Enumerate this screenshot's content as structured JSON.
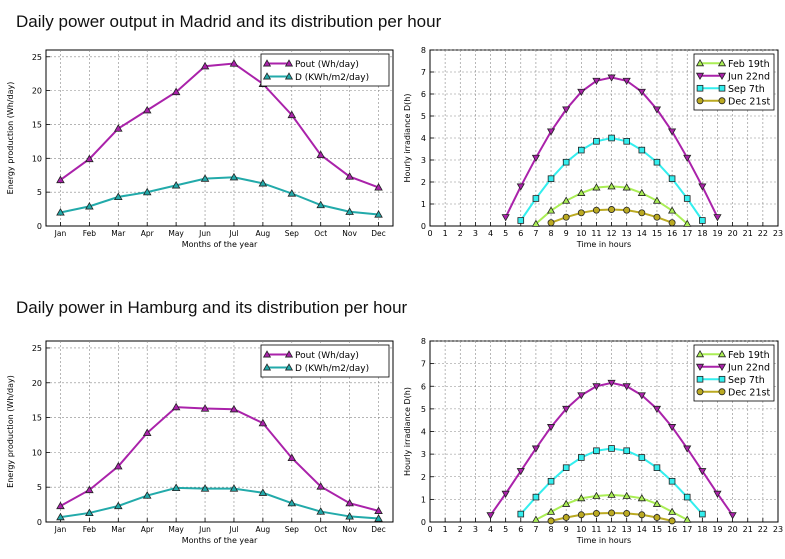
{
  "page": {
    "titles": [
      "Daily power output in Madrid and its distribution per hour",
      "Daily power in Hamburg and its distribution per hour"
    ]
  },
  "colors": {
    "pout": "#aa22aa",
    "d": "#22aaaa",
    "feb": "#aaee55",
    "jun": "#aa22aa",
    "sep": "#33eeee",
    "dec": "#bbaa22",
    "grid": "#888888"
  },
  "chart_data": [
    {
      "id": "madrid-monthly",
      "type": "line",
      "title": "",
      "xlabel": "Months of the year",
      "ylabel": "Energy production (Wh/day)",
      "categories": [
        "Jan",
        "Feb",
        "Mar",
        "Apr",
        "May",
        "Jun",
        "Jul",
        "Aug",
        "Sep",
        "Oct",
        "Nov",
        "Dec"
      ],
      "ylim": [
        0,
        26
      ],
      "yticks": [
        0,
        5,
        10,
        15,
        20,
        25
      ],
      "legend_position": "top-right",
      "series": [
        {
          "name": "Pout (Wh/day)",
          "marker": "triangle-up",
          "color_key": "pout",
          "values": [
            6.8,
            9.9,
            14.4,
            17.1,
            19.8,
            23.6,
            24.0,
            21.0,
            16.4,
            10.5,
            7.3,
            5.7
          ]
        },
        {
          "name": "D  (KWh/m2/day)",
          "marker": "triangle-up",
          "color_key": "d",
          "values": [
            2.0,
            2.9,
            4.3,
            5.0,
            6.0,
            7.0,
            7.2,
            6.3,
            4.8,
            3.1,
            2.1,
            1.7
          ]
        }
      ]
    },
    {
      "id": "madrid-hourly",
      "type": "line",
      "title": "",
      "xlabel": "Time in hours",
      "ylabel": "Hourly irradiance D(h)",
      "xlim": [
        0,
        23
      ],
      "xticks": [
        0,
        1,
        2,
        3,
        4,
        5,
        6,
        7,
        8,
        9,
        10,
        11,
        12,
        13,
        14,
        15,
        16,
        17,
        18,
        19,
        20,
        21,
        22,
        23
      ],
      "ylim": [
        0,
        8
      ],
      "yticks": [
        0,
        1,
        2,
        3,
        4,
        5,
        6,
        7,
        8
      ],
      "legend_position": "top-right",
      "series": [
        {
          "name": "Feb 19th",
          "marker": "triangle-up",
          "color_key": "feb",
          "x": [
            7,
            8,
            9,
            10,
            11,
            12,
            13,
            14,
            15,
            16,
            17
          ],
          "y": [
            0.1,
            0.7,
            1.15,
            1.5,
            1.75,
            1.8,
            1.75,
            1.5,
            1.15,
            0.7,
            0.1
          ]
        },
        {
          "name": "Jun 22nd",
          "marker": "triangle-down",
          "color_key": "jun",
          "x": [
            5,
            6,
            7,
            8,
            9,
            10,
            11,
            12,
            13,
            14,
            15,
            16,
            17,
            18,
            19
          ],
          "y": [
            0.4,
            1.8,
            3.1,
            4.3,
            5.3,
            6.1,
            6.6,
            6.75,
            6.6,
            6.1,
            5.3,
            4.3,
            3.1,
            1.8,
            0.4
          ]
        },
        {
          "name": "Sep 7th",
          "marker": "square",
          "color_key": "sep",
          "x": [
            6,
            7,
            8,
            9,
            10,
            11,
            12,
            13,
            14,
            15,
            16,
            17,
            18
          ],
          "y": [
            0.25,
            1.25,
            2.15,
            2.9,
            3.45,
            3.85,
            4.0,
            3.85,
            3.45,
            2.9,
            2.15,
            1.25,
            0.25
          ]
        },
        {
          "name": "Dec 21st",
          "marker": "circle",
          "color_key": "dec",
          "x": [
            8,
            9,
            10,
            11,
            12,
            13,
            14,
            15,
            16
          ],
          "y": [
            0.15,
            0.4,
            0.6,
            0.72,
            0.75,
            0.72,
            0.6,
            0.4,
            0.15
          ]
        }
      ]
    },
    {
      "id": "hamburg-monthly",
      "type": "line",
      "title": "",
      "xlabel": "Months of the year",
      "ylabel": "Energy production (Wh/day)",
      "categories": [
        "Jan",
        "Feb",
        "Mar",
        "Apr",
        "May",
        "Jun",
        "Jul",
        "Aug",
        "Sep",
        "Oct",
        "Nov",
        "Dec"
      ],
      "ylim": [
        0,
        26
      ],
      "yticks": [
        0,
        5,
        10,
        15,
        20,
        25
      ],
      "legend_position": "top-right",
      "series": [
        {
          "name": "Pout (Wh/day)",
          "marker": "triangle-up",
          "color_key": "pout",
          "values": [
            2.3,
            4.6,
            8.0,
            12.8,
            16.5,
            16.3,
            16.2,
            14.2,
            9.2,
            5.1,
            2.7,
            1.6
          ]
        },
        {
          "name": "D  (KWh/m2/day)",
          "marker": "triangle-up",
          "color_key": "d",
          "values": [
            0.7,
            1.3,
            2.3,
            3.8,
            4.9,
            4.8,
            4.8,
            4.2,
            2.7,
            1.5,
            0.8,
            0.5
          ]
        }
      ]
    },
    {
      "id": "hamburg-hourly",
      "type": "line",
      "title": "",
      "xlabel": "Time in hours",
      "ylabel": "Hourly irradiance D(h)",
      "xlim": [
        0,
        23
      ],
      "xticks": [
        0,
        1,
        2,
        3,
        4,
        5,
        6,
        7,
        8,
        9,
        10,
        11,
        12,
        13,
        14,
        15,
        16,
        17,
        18,
        19,
        20,
        21,
        22,
        23
      ],
      "ylim": [
        0,
        8
      ],
      "yticks": [
        0,
        1,
        2,
        3,
        4,
        5,
        6,
        7,
        8
      ],
      "legend_position": "top-right",
      "series": [
        {
          "name": "Feb 19th",
          "marker": "triangle-up",
          "color_key": "feb",
          "x": [
            7,
            8,
            9,
            10,
            11,
            12,
            13,
            14,
            15,
            16,
            17
          ],
          "y": [
            0.1,
            0.45,
            0.8,
            1.05,
            1.15,
            1.2,
            1.15,
            1.05,
            0.8,
            0.45,
            0.1
          ]
        },
        {
          "name": "Jun 22nd",
          "marker": "triangle-down",
          "color_key": "jun",
          "x": [
            4,
            5,
            6,
            7,
            8,
            9,
            10,
            11,
            12,
            13,
            14,
            15,
            16,
            17,
            18,
            19,
            20
          ],
          "y": [
            0.3,
            1.25,
            2.25,
            3.25,
            4.2,
            5.0,
            5.6,
            6.0,
            6.15,
            6.0,
            5.6,
            5.0,
            4.2,
            3.25,
            2.25,
            1.25,
            0.3
          ]
        },
        {
          "name": "Sep 7th",
          "marker": "square",
          "color_key": "sep",
          "x": [
            6,
            7,
            8,
            9,
            10,
            11,
            12,
            13,
            14,
            15,
            16,
            17,
            18
          ],
          "y": [
            0.35,
            1.1,
            1.8,
            2.4,
            2.85,
            3.15,
            3.25,
            3.15,
            2.85,
            2.4,
            1.8,
            1.1,
            0.35
          ]
        },
        {
          "name": "Dec 21st",
          "marker": "circle",
          "color_key": "dec",
          "x": [
            8,
            9,
            10,
            11,
            12,
            13,
            14,
            15,
            16
          ],
          "y": [
            0.05,
            0.2,
            0.32,
            0.38,
            0.4,
            0.38,
            0.32,
            0.2,
            0.05
          ]
        }
      ]
    }
  ]
}
